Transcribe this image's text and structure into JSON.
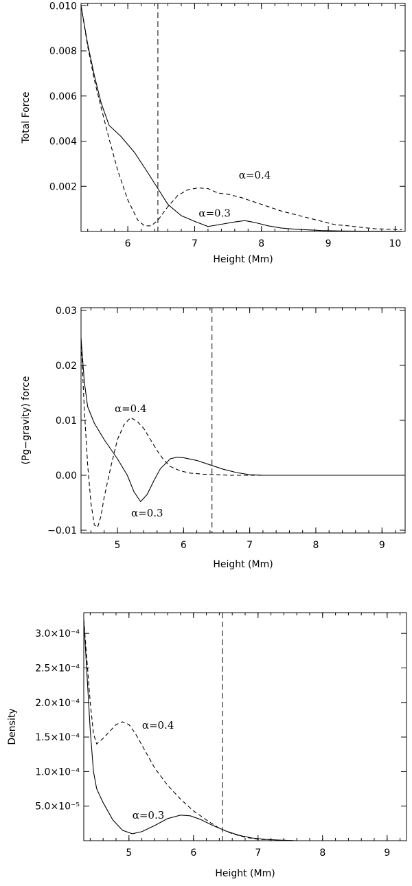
{
  "chart_data": [
    {
      "type": "line",
      "xlabel": "Height (Mm)",
      "ylabel": "Total Force",
      "xlim": [
        5.3,
        10.15
      ],
      "ylim": [
        0.0,
        0.0101
      ],
      "xticks": [
        {
          "v": 6,
          "label": "6"
        },
        {
          "v": 7,
          "label": "7"
        },
        {
          "v": 8,
          "label": "8"
        },
        {
          "v": 9,
          "label": "9"
        },
        {
          "v": 10,
          "label": "10"
        }
      ],
      "yticks": [
        {
          "v": 0.002,
          "label": "0.002"
        },
        {
          "v": 0.004,
          "label": "0.004"
        },
        {
          "v": 0.006,
          "label": "0.006"
        },
        {
          "v": 0.008,
          "label": "0.008"
        },
        {
          "v": 0.01,
          "label": "0.010"
        }
      ],
      "vline": 6.45,
      "series": [
        {
          "name": "α=0.3",
          "style": "solid",
          "x": [
            5.3,
            5.4,
            5.5,
            5.6,
            5.72,
            5.9,
            6.1,
            6.3,
            6.45,
            6.6,
            6.8,
            7.0,
            7.2,
            7.4,
            7.6,
            7.75,
            7.9,
            8.1,
            8.3,
            8.5,
            8.7,
            8.9,
            9.2,
            9.6,
            10.1
          ],
          "y": [
            0.01,
            0.0083,
            0.0069,
            0.0057,
            0.0047,
            0.0042,
            0.0035,
            0.0026,
            0.0019,
            0.0012,
            0.0007,
            0.00045,
            0.00022,
            0.00032,
            0.00042,
            0.00048,
            0.0004,
            0.00025,
            0.00015,
            0.0001,
            7e-05,
            4e-05,
            2e-05,
            1e-05,
            1e-05
          ]
        },
        {
          "name": "α=0.4",
          "style": "dashed",
          "x": [
            5.3,
            5.4,
            5.5,
            5.6,
            5.72,
            5.85,
            6.0,
            6.15,
            6.25,
            6.35,
            6.45,
            6.6,
            6.75,
            6.9,
            7.05,
            7.2,
            7.35,
            7.5,
            7.7,
            7.9,
            8.1,
            8.3,
            8.5,
            8.7,
            8.9,
            9.1,
            9.3,
            9.5,
            9.7,
            9.9,
            10.1
          ],
          "y": [
            0.01,
            0.0082,
            0.0067,
            0.0055,
            0.0041,
            0.0027,
            0.0014,
            0.0005,
            0.00025,
            0.00025,
            0.0005,
            0.0011,
            0.0016,
            0.00185,
            0.00193,
            0.0019,
            0.0017,
            0.00165,
            0.0015,
            0.0013,
            0.0011,
            0.0009,
            0.00075,
            0.0006,
            0.00045,
            0.0003,
            0.00025,
            0.00018,
            0.00012,
            0.0001,
            8e-05
          ]
        }
      ],
      "annotations": [
        {
          "text": "α=0.4",
          "x": 7.9,
          "y": 0.00235
        },
        {
          "text": "α=0.3",
          "x": 7.3,
          "y": 0.00065
        }
      ]
    },
    {
      "type": "line",
      "xlabel": "Height (Mm)",
      "ylabel": "(Pg−gravity) force",
      "xlim": [
        4.45,
        9.35
      ],
      "ylim": [
        -0.0105,
        0.0305
      ],
      "xticks": [
        {
          "v": 5,
          "label": "5"
        },
        {
          "v": 6,
          "label": "6"
        },
        {
          "v": 7,
          "label": "7"
        },
        {
          "v": 8,
          "label": "8"
        },
        {
          "v": 9,
          "label": "9"
        }
      ],
      "yticks": [
        {
          "v": -0.01,
          "label": "−0.01"
        },
        {
          "v": 0.0,
          "label": "0.00"
        },
        {
          "v": 0.01,
          "label": "0.01"
        },
        {
          "v": 0.02,
          "label": "0.02"
        },
        {
          "v": 0.03,
          "label": "0.03"
        }
      ],
      "vline": 6.43,
      "series": [
        {
          "name": "α=0.3",
          "style": "solid",
          "x": [
            4.45,
            4.5,
            4.55,
            4.65,
            4.8,
            5.0,
            5.15,
            5.25,
            5.35,
            5.45,
            5.55,
            5.65,
            5.8,
            5.9,
            6.0,
            6.2,
            6.4,
            6.6,
            6.8,
            7.0,
            7.2,
            7.6,
            8.0,
            9.35
          ],
          "y": [
            0.025,
            0.017,
            0.0125,
            0.0095,
            0.0065,
            0.003,
            0.0,
            -0.003,
            -0.0048,
            -0.0035,
            -0.001,
            0.0012,
            0.003,
            0.0033,
            0.0032,
            0.0027,
            0.0019,
            0.0011,
            0.0005,
            0.0001,
            0.0,
            0.0,
            0.0,
            0.0
          ]
        },
        {
          "name": "α=0.4",
          "style": "dashed",
          "x": [
            4.45,
            4.5,
            4.55,
            4.6,
            4.65,
            4.7,
            4.75,
            4.8,
            4.9,
            5.0,
            5.1,
            5.2,
            5.3,
            5.4,
            5.5,
            5.6,
            5.7,
            5.8,
            5.95,
            6.1,
            6.3,
            6.5,
            6.7,
            7.0,
            7.5,
            8.0,
            9.35
          ],
          "y": [
            0.025,
            0.012,
            0.002,
            -0.005,
            -0.009,
            -0.0095,
            -0.0075,
            -0.004,
            0.0015,
            0.0065,
            0.0092,
            0.0105,
            0.0098,
            0.0085,
            0.0065,
            0.0045,
            0.0028,
            0.0016,
            0.0008,
            0.0004,
            0.0002,
            0.0001,
            0.0,
            0.0,
            0.0,
            0.0,
            0.0
          ]
        }
      ],
      "annotations": [
        {
          "text": "α=0.4",
          "x": 5.2,
          "y": 0.0115
        },
        {
          "text": "α=0.3",
          "x": 5.45,
          "y": -0.0075
        }
      ]
    },
    {
      "type": "line",
      "xlabel": "Height (Mm)",
      "ylabel": "Density",
      "xlim": [
        4.3,
        9.3
      ],
      "ylim": [
        0.0,
        0.00033
      ],
      "xticks": [
        {
          "v": 5,
          "label": "5"
        },
        {
          "v": 6,
          "label": "6"
        },
        {
          "v": 7,
          "label": "7"
        },
        {
          "v": 8,
          "label": "8"
        },
        {
          "v": 9,
          "label": "9"
        }
      ],
      "yticks": [
        {
          "v": 5e-05,
          "label": "5.0×10⁻⁵"
        },
        {
          "v": 0.0001,
          "label": "1.0×10⁻⁴"
        },
        {
          "v": 0.00015,
          "label": "1.5×10⁻⁴"
        },
        {
          "v": 0.0002,
          "label": "2.0×10⁻⁴"
        },
        {
          "v": 0.00025,
          "label": "2.5×10⁻⁴"
        },
        {
          "v": 0.0003,
          "label": "3.0×10⁻⁴"
        }
      ],
      "vline": 6.45,
      "series": [
        {
          "name": "α=0.3",
          "style": "solid",
          "x": [
            4.3,
            4.35,
            4.4,
            4.45,
            4.5,
            4.6,
            4.75,
            4.9,
            5.05,
            5.2,
            5.4,
            5.6,
            5.8,
            5.95,
            6.1,
            6.3,
            6.5,
            6.7,
            6.9,
            7.1,
            7.3,
            7.6,
            8.0,
            8.3
          ],
          "y": [
            0.00032,
            0.00024,
            0.00016,
            0.0001,
            7.5e-05,
            5.5e-05,
            3e-05,
            1.5e-05,
            1e-05,
            1.3e-05,
            2.2e-05,
            3.2e-05,
            3.7e-05,
            3.6e-05,
            3.1e-05,
            2.2e-05,
            1.4e-05,
            8e-06,
            4e-06,
            2e-06,
            1e-06,
            0.0,
            0.0,
            0.0
          ]
        },
        {
          "name": "α=0.4",
          "style": "dashed",
          "x": [
            4.3,
            4.35,
            4.4,
            4.45,
            4.5,
            4.6,
            4.7,
            4.8,
            4.9,
            5.0,
            5.1,
            5.25,
            5.4,
            5.6,
            5.8,
            6.0,
            6.2,
            6.4,
            6.6,
            6.8,
            7.0,
            7.3,
            7.6,
            8.0,
            8.3
          ],
          "y": [
            0.00032,
            0.00026,
            0.0002,
            0.000155,
            0.00014,
            0.000148,
            0.000158,
            0.000168,
            0.000172,
            0.000168,
            0.000155,
            0.00013,
            0.000105,
            8e-05,
            6e-05,
            4.3e-05,
            3e-05,
            1.8e-05,
            1e-05,
            5e-06,
            2e-06,
            1e-06,
            0.0,
            0.0,
            0.0
          ]
        }
      ],
      "annotations": [
        {
          "text": "α=0.4",
          "x": 5.45,
          "y": 0.000162
        },
        {
          "text": "α=0.3",
          "x": 5.3,
          "y": 3.2e-05
        }
      ]
    }
  ]
}
